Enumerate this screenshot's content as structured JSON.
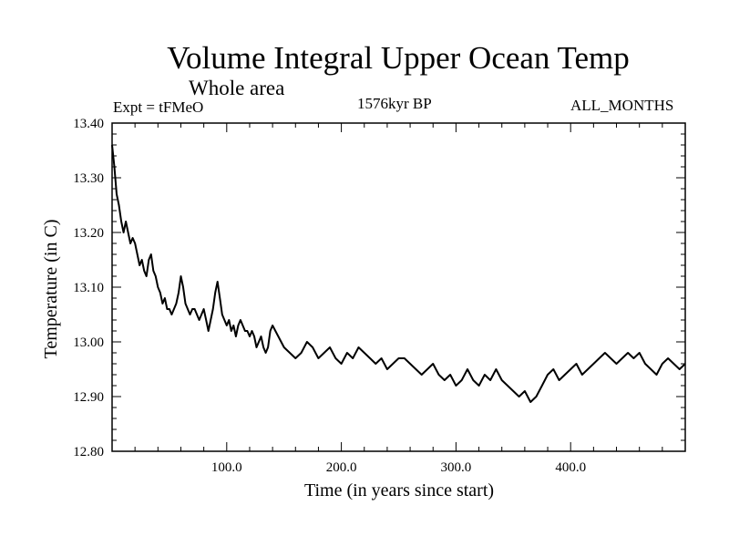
{
  "chart_data": {
    "type": "line",
    "title": "Volume Integral Upper Ocean Temp",
    "subtitle": "Whole area",
    "left_annotation": "Expt = tFMeO",
    "center_annotation": "1576kyr BP",
    "right_annotation": "ALL_MONTHS",
    "xlabel": "Time (in years since start)",
    "ylabel": "Temperature (in C)",
    "xlim": [
      0,
      500
    ],
    "ylim": [
      12.8,
      13.4
    ],
    "xticks": [
      100,
      200,
      300,
      400
    ],
    "xtick_labels": [
      "100.0",
      "200.0",
      "300.0",
      "400.0"
    ],
    "yticks": [
      12.8,
      12.9,
      13.0,
      13.1,
      13.2,
      13.3,
      13.4
    ],
    "ytick_labels": [
      "12.80",
      "12.90",
      "13.00",
      "13.10",
      "13.20",
      "13.30",
      "13.40"
    ],
    "grid": false,
    "series": [
      {
        "name": "Temperature",
        "color": "#000000",
        "x": [
          0,
          2,
          4,
          6,
          8,
          10,
          12,
          14,
          16,
          18,
          20,
          22,
          24,
          26,
          28,
          30,
          32,
          34,
          36,
          38,
          40,
          42,
          44,
          46,
          48,
          50,
          52,
          54,
          56,
          58,
          60,
          62,
          64,
          66,
          68,
          70,
          72,
          74,
          76,
          78,
          80,
          82,
          84,
          86,
          88,
          90,
          92,
          94,
          96,
          98,
          100,
          102,
          104,
          106,
          108,
          110,
          112,
          114,
          116,
          118,
          120,
          122,
          124,
          126,
          128,
          130,
          132,
          134,
          136,
          138,
          140,
          145,
          150,
          155,
          160,
          165,
          170,
          175,
          180,
          185,
          190,
          195,
          200,
          205,
          210,
          215,
          220,
          225,
          230,
          235,
          240,
          245,
          250,
          255,
          260,
          265,
          270,
          275,
          280,
          285,
          290,
          295,
          300,
          305,
          310,
          315,
          320,
          325,
          330,
          335,
          340,
          345,
          350,
          355,
          360,
          365,
          370,
          375,
          380,
          385,
          390,
          395,
          400,
          405,
          410,
          415,
          420,
          425,
          430,
          435,
          440,
          445,
          450,
          455,
          460,
          465,
          470,
          475,
          480,
          485,
          490,
          495,
          500
        ],
        "values": [
          13.36,
          13.32,
          13.27,
          13.25,
          13.22,
          13.2,
          13.22,
          13.2,
          13.18,
          13.19,
          13.18,
          13.16,
          13.14,
          13.15,
          13.13,
          13.12,
          13.15,
          13.16,
          13.13,
          13.12,
          13.1,
          13.09,
          13.07,
          13.08,
          13.06,
          13.06,
          13.05,
          13.06,
          13.07,
          13.09,
          13.12,
          13.1,
          13.07,
          13.06,
          13.05,
          13.06,
          13.06,
          13.05,
          13.04,
          13.05,
          13.06,
          13.04,
          13.02,
          13.04,
          13.06,
          13.09,
          13.11,
          13.08,
          13.05,
          13.04,
          13.03,
          13.04,
          13.02,
          13.03,
          13.01,
          13.03,
          13.04,
          13.03,
          13.02,
          13.02,
          13.01,
          13.02,
          13.01,
          12.99,
          13.0,
          13.01,
          12.99,
          12.98,
          12.99,
          13.02,
          13.03,
          13.01,
          12.99,
          12.98,
          12.97,
          12.98,
          13.0,
          12.99,
          12.97,
          12.98,
          12.99,
          12.97,
          12.96,
          12.98,
          12.97,
          12.99,
          12.98,
          12.97,
          12.96,
          12.97,
          12.95,
          12.96,
          12.97,
          12.97,
          12.96,
          12.95,
          12.94,
          12.95,
          12.96,
          12.94,
          12.93,
          12.94,
          12.92,
          12.93,
          12.95,
          12.93,
          12.92,
          12.94,
          12.93,
          12.95,
          12.93,
          12.92,
          12.91,
          12.9,
          12.91,
          12.89,
          12.9,
          12.92,
          12.94,
          12.95,
          12.93,
          12.94,
          12.95,
          12.96,
          12.94,
          12.95,
          12.96,
          12.97,
          12.98,
          12.97,
          12.96,
          12.97,
          12.98,
          12.97,
          12.98,
          12.96,
          12.95,
          12.94,
          12.96,
          12.97,
          12.96,
          12.95,
          12.96
        ]
      }
    ]
  }
}
